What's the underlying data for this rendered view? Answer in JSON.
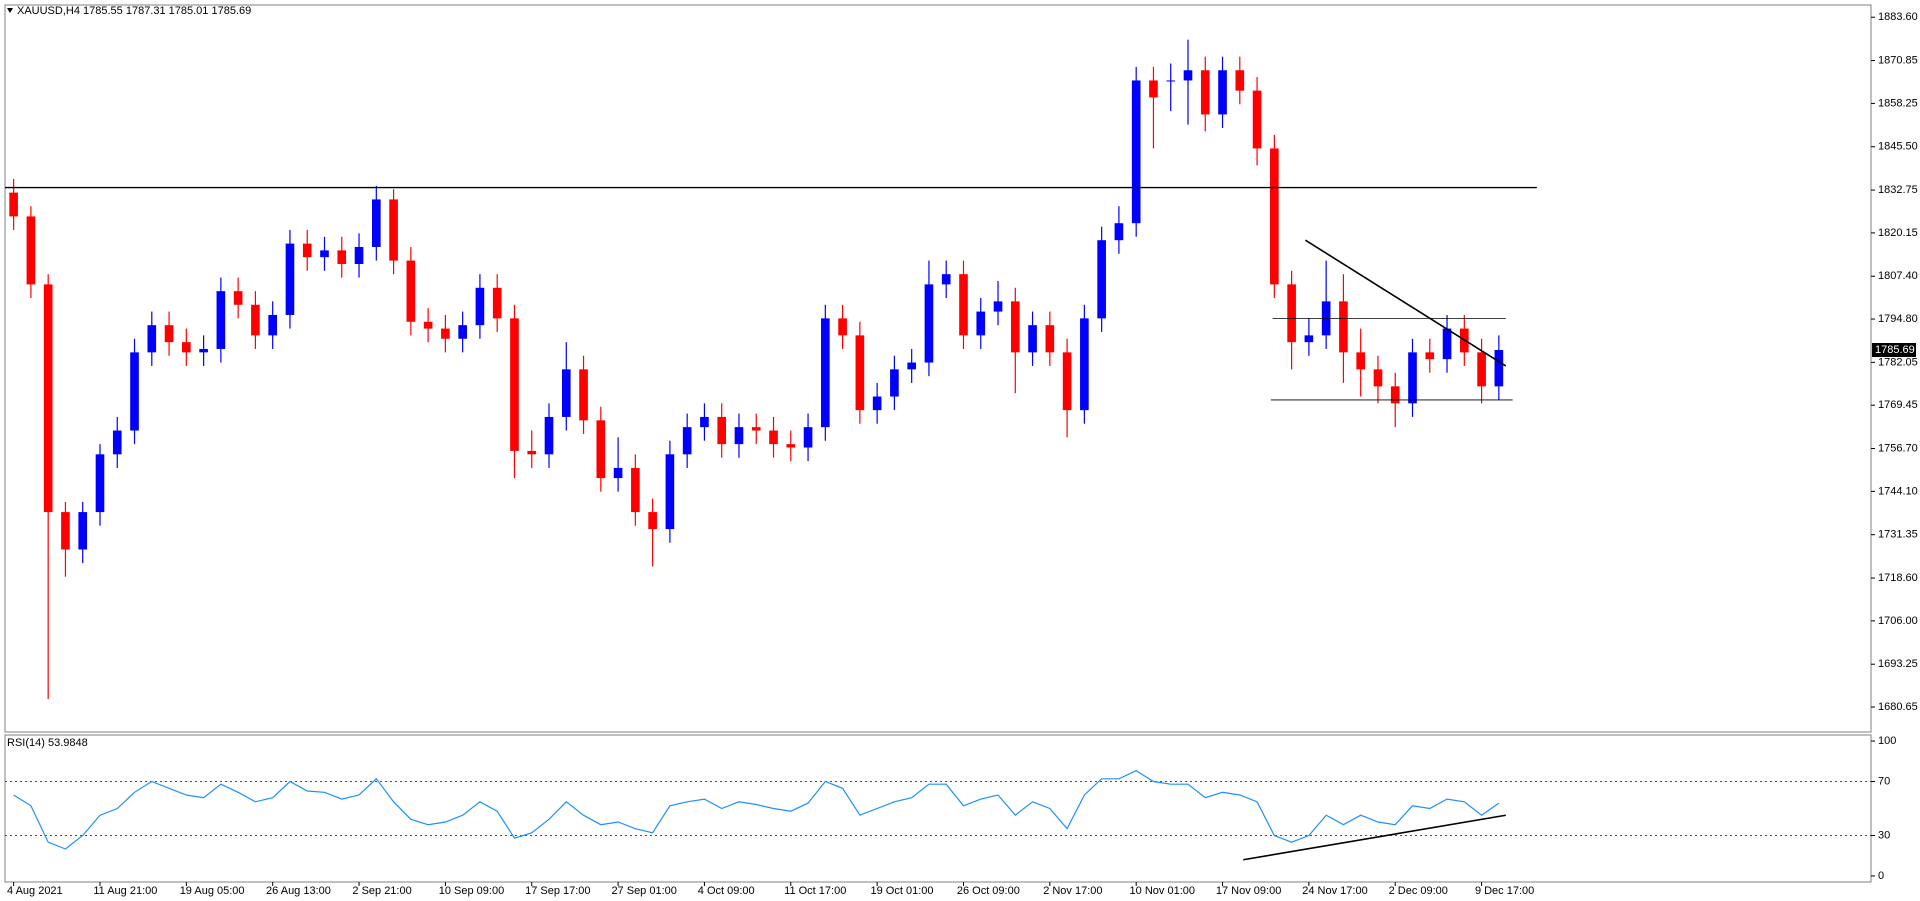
{
  "chart_data": [
    {
      "type": "candlestick",
      "title": "XAUUSD,H4  1785.55 1787.31 1785.01 1785.69",
      "categories": [
        "4 Aug 2021",
        null,
        null,
        null,
        null,
        "11 Aug 21:00",
        null,
        null,
        null,
        null,
        "19 Aug 05:00",
        null,
        null,
        null,
        null,
        "26 Aug 13:00",
        null,
        null,
        null,
        null,
        "2 Sep 21:00",
        null,
        null,
        null,
        null,
        "10 Sep 09:00",
        null,
        null,
        null,
        null,
        "17 Sep 17:00",
        null,
        null,
        null,
        null,
        "27 Sep 01:00",
        null,
        null,
        null,
        null,
        "4 Oct 09:00",
        null,
        null,
        null,
        null,
        "11 Oct 17:00",
        null,
        null,
        null,
        null,
        "19 Oct 01:00",
        null,
        null,
        null,
        null,
        "26 Oct 09:00",
        null,
        null,
        null,
        null,
        "2 Nov 17:00",
        null,
        null,
        null,
        null,
        "10 Nov 01:00",
        null,
        null,
        null,
        null,
        "17 Nov 09:00",
        null,
        null,
        null,
        null,
        "24 Nov 17:00",
        null,
        null,
        null,
        null,
        "2 Dec 09:00",
        null,
        null,
        null,
        null,
        "9 Dec 17:00",
        null
      ],
      "open": [
        1832,
        1825,
        1805,
        1738,
        1727,
        1738,
        1755,
        1762,
        1785,
        1793,
        1788,
        1785,
        1786,
        1803,
        1799,
        1790,
        1796,
        1817,
        1813,
        1815,
        1811,
        1816,
        1830,
        1812,
        1794,
        1792,
        1789,
        1793,
        1804,
        1795,
        1756,
        1755,
        1766,
        1780,
        1765,
        1748,
        1751,
        1738,
        1733,
        1755,
        1763,
        1766,
        1758,
        1763,
        1762,
        1758,
        1757,
        1763,
        1795,
        1790,
        1768,
        1772,
        1780,
        1782,
        1805,
        1808,
        1790,
        1797,
        1800,
        1785,
        1793,
        1785,
        1768,
        1795,
        1818,
        1823,
        1865,
        1865,
        1865,
        1868,
        1855,
        1868,
        1862,
        1845,
        1805,
        1788,
        1790,
        1800,
        1785,
        1780,
        1775,
        1770,
        1785,
        1783,
        1792,
        1785,
        1775
      ],
      "high": [
        1836,
        1828,
        1808,
        1741,
        1741,
        1758,
        1766,
        1789,
        1797,
        1797,
        1792,
        1790,
        1807,
        1807,
        1803,
        1800,
        1821,
        1821,
        1819,
        1819,
        1820,
        1834,
        1833,
        1816,
        1798,
        1796,
        1797,
        1808,
        1808,
        1799,
        1762,
        1770,
        1788,
        1784,
        1769,
        1760,
        1755,
        1742,
        1759,
        1767,
        1770,
        1770,
        1767,
        1767,
        1766,
        1762,
        1767,
        1799,
        1799,
        1794,
        1776,
        1784,
        1786,
        1812,
        1812,
        1812,
        1801,
        1806,
        1804,
        1797,
        1797,
        1789,
        1799,
        1822,
        1828,
        1869,
        1869,
        1870,
        1877,
        1872,
        1872,
        1872,
        1866,
        1849,
        1809,
        1795,
        1812,
        1808,
        1792,
        1784,
        1779,
        1789,
        1789,
        1796,
        1796,
        1789,
        1790
      ],
      "low": [
        1821,
        1801,
        1683,
        1719,
        1723,
        1734,
        1751,
        1758,
        1781,
        1784,
        1781,
        1781,
        1782,
        1795,
        1786,
        1786,
        1792,
        1809,
        1809,
        1807,
        1807,
        1812,
        1808,
        1790,
        1788,
        1785,
        1785,
        1789,
        1791,
        1748,
        1751,
        1751,
        1762,
        1761,
        1744,
        1744,
        1734,
        1722,
        1729,
        1751,
        1759,
        1754,
        1754,
        1758,
        1754,
        1753,
        1753,
        1759,
        1786,
        1764,
        1764,
        1768,
        1776,
        1778,
        1801,
        1786,
        1786,
        1793,
        1773,
        1781,
        1781,
        1760,
        1764,
        1791,
        1814,
        1819,
        1845,
        1856,
        1852,
        1850,
        1851,
        1858,
        1840,
        1801,
        1780,
        1784,
        1786,
        1776,
        1772,
        1770,
        1763,
        1766,
        1779,
        1779,
        1781,
        1770,
        1771
      ],
      "close": [
        1825,
        1805,
        1738,
        1727,
        1738,
        1755,
        1762,
        1785,
        1793,
        1788,
        1785,
        1786,
        1803,
        1799,
        1790,
        1796,
        1817,
        1813,
        1815,
        1811,
        1816,
        1830,
        1812,
        1794,
        1792,
        1789,
        1793,
        1804,
        1795,
        1756,
        1755,
        1766,
        1780,
        1765,
        1748,
        1751,
        1738,
        1733,
        1755,
        1763,
        1766,
        1758,
        1763,
        1762,
        1758,
        1757,
        1763,
        1795,
        1790,
        1768,
        1772,
        1780,
        1782,
        1805,
        1808,
        1790,
        1797,
        1800,
        1785,
        1793,
        1785,
        1768,
        1795,
        1818,
        1823,
        1865,
        1860,
        1865,
        1868,
        1855,
        1868,
        1862,
        1845,
        1805,
        1788,
        1790,
        1800,
        1785,
        1780,
        1775,
        1770,
        1785,
        1783,
        1792,
        1785,
        1775,
        1785.69
      ],
      "up_color": "#0000ff",
      "down_color": "#ff0000",
      "ylim": [
        1673.3,
        1887.2
      ],
      "yticks": [
        {
          "value": 1883.6,
          "label": "1883.60"
        },
        {
          "value": 1870.85,
          "label": "1870.85"
        },
        {
          "value": 1858.25,
          "label": "1858.25"
        },
        {
          "value": 1845.5,
          "label": "1845.50"
        },
        {
          "value": 1832.75,
          "label": "1832.75"
        },
        {
          "value": 1820.15,
          "label": "1820.15"
        },
        {
          "value": 1807.4,
          "label": "1807.40"
        },
        {
          "value": 1794.8,
          "label": "1794.80"
        },
        {
          "value": 1782.05,
          "label": "1782.05"
        },
        {
          "value": 1769.45,
          "label": "1769.45"
        },
        {
          "value": 1756.7,
          "label": "1756.70"
        },
        {
          "value": 1744.1,
          "label": "1744.10"
        },
        {
          "value": 1731.35,
          "label": "1731.35"
        },
        {
          "value": 1718.6,
          "label": "1718.60"
        },
        {
          "value": 1706,
          "label": "1706.00"
        },
        {
          "value": 1693.25,
          "label": "1693.25"
        },
        {
          "value": 1680.65,
          "label": "1680.65"
        }
      ],
      "trendlines": [
        {
          "x": [
            -0.5,
            88.2
          ],
          "y": [
            1833.5,
            1833.5
          ]
        },
        {
          "x": [
            74.8,
            86.4
          ],
          "y": [
            1818,
            1781
          ]
        },
        {
          "x": [
            72.9,
            86.4
          ],
          "y": [
            1795,
            1795
          ]
        },
        {
          "x": [
            72.8,
            86.8
          ],
          "y": [
            1771,
            1771
          ]
        }
      ],
      "trendline_color": "#000000"
    },
    {
      "type": "line",
      "title": "RSI(14) 53.9848",
      "values": [
        60,
        52,
        25,
        20,
        30,
        45,
        50,
        62,
        70,
        65,
        60,
        58,
        68,
        62,
        55,
        58,
        70,
        63,
        62,
        57,
        60,
        72,
        55,
        42,
        38,
        40,
        45,
        55,
        48,
        28,
        32,
        42,
        55,
        45,
        38,
        40,
        35,
        32,
        52,
        55,
        57,
        50,
        55,
        53,
        50,
        48,
        54,
        70,
        65,
        45,
        50,
        55,
        58,
        68,
        68,
        52,
        57,
        60,
        45,
        55,
        50,
        35,
        60,
        72,
        72,
        78,
        70,
        68,
        68,
        58,
        62,
        60,
        55,
        30,
        25,
        30,
        45,
        38,
        45,
        40,
        38,
        52,
        50,
        57,
        55,
        45,
        53.9848
      ],
      "color": "#1e90ff",
      "ylim": [
        -4.5,
        104.5
      ],
      "yticks": [
        100,
        70,
        30,
        0
      ],
      "levels": [
        70,
        30
      ],
      "level_color": "#ff0000",
      "trendlines": [
        {
          "x": [
            71.2,
            86.4
          ],
          "y": [
            12,
            45
          ]
        }
      ],
      "trendline_color": "#000000"
    }
  ]
}
